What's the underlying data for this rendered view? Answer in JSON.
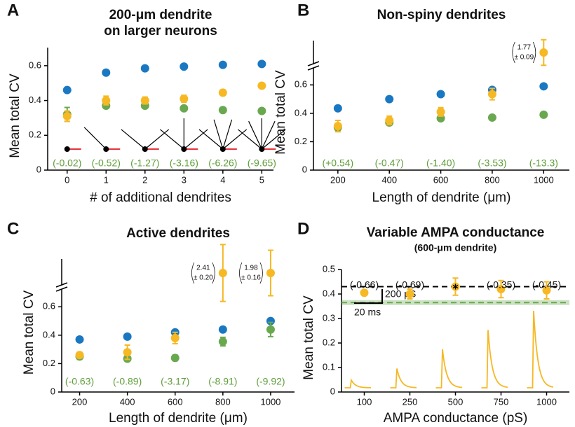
{
  "chart_data": [
    {
      "type": "scatter",
      "label": "A",
      "title": [
        "200-μm dendrite",
        "on larger neurons"
      ],
      "x_label": "# of additional dendrites",
      "y_label": "Mean total CV",
      "x": [
        0,
        1,
        2,
        3,
        4,
        5
      ],
      "xlim": [
        -0.5,
        5.3
      ],
      "xticks": [
        0,
        1,
        2,
        3,
        4,
        5
      ],
      "ylim": [
        0,
        0.7
      ],
      "yticks": [
        0,
        0.2,
        0.4,
        0.6
      ],
      "series": [
        {
          "color": "#1a78c2",
          "values": [
            0.46,
            0.56,
            0.585,
            0.595,
            0.605,
            0.61
          ]
        },
        {
          "color": "#6aa84f",
          "values": [
            0.32,
            0.37,
            0.37,
            0.355,
            0.345,
            0.34
          ],
          "errors": [
            0.04,
            0.015,
            0.01,
            0.01,
            0.01,
            0.01
          ]
        },
        {
          "color": "#f6b823",
          "values": [
            0.31,
            0.4,
            0.4,
            0.41,
            0.445,
            0.485
          ],
          "errors": [
            0.03,
            0.025,
            0.02,
            0.02,
            0.015,
            0.01
          ]
        }
      ],
      "annotations": [
        "(-0.02)",
        "(-0.52)",
        "(-1.27)",
        "(-3.16)",
        "(-6.26)",
        "(-9.65)"
      ],
      "annotation_color": "#5f9e3a"
    },
    {
      "type": "scatter",
      "label": "B",
      "title": [
        "Non-spiny dendrites"
      ],
      "x_label": "Length of dendrite (μm)",
      "y_label": "Mean total CV",
      "x": [
        200,
        400,
        600,
        800,
        1000
      ],
      "xlim": [
        105,
        1100
      ],
      "xticks": [
        200,
        400,
        600,
        800,
        1000
      ],
      "ylim": [
        0,
        0.7
      ],
      "yticks": [
        0,
        0.2,
        0.4,
        0.6
      ],
      "axis_break": true,
      "series": [
        {
          "color": "#1a78c2",
          "values": [
            0.435,
            0.5,
            0.535,
            0.565,
            0.59
          ]
        },
        {
          "color": "#6aa84f",
          "values": [
            0.3,
            0.335,
            0.365,
            0.37,
            0.39
          ],
          "errors": [
            0.02,
            0.02,
            0.01,
            0.01,
            0.01
          ]
        },
        {
          "color": "#f6b823",
          "values": [
            0.31,
            0.35,
            0.41,
            0.535,
            1.77
          ],
          "errors": [
            0.04,
            0.03,
            0.03,
            0.04,
            0.09
          ],
          "error_labels": [
            null,
            null,
            null,
            null,
            "± 0.09"
          ]
        }
      ],
      "annotations": [
        "(+0.54)",
        "(-0.47)",
        "(-1.40)",
        "(-3.53)",
        "(-13.3)"
      ],
      "annotation_color": "#5f9e3a"
    },
    {
      "type": "scatter",
      "label": "C",
      "title": [
        "Active dendrites"
      ],
      "x_label": "Length of dendrite (μm)",
      "y_label": "Mean total CV",
      "x": [
        200,
        400,
        600,
        800,
        1000
      ],
      "xlim": [
        125,
        1100
      ],
      "xticks": [
        200,
        400,
        600,
        800,
        1000
      ],
      "ylim": [
        0,
        0.7
      ],
      "yticks": [
        0,
        0.2,
        0.4,
        0.6
      ],
      "axis_break": true,
      "series": [
        {
          "color": "#1a78c2",
          "values": [
            0.37,
            0.39,
            0.42,
            0.44,
            0.5
          ]
        },
        {
          "color": "#6aa84f",
          "values": [
            0.25,
            0.235,
            0.24,
            0.355,
            0.44
          ],
          "errors": [
            0.02,
            0.02,
            0.02,
            0.03,
            0.05
          ]
        },
        {
          "color": "#f6b823",
          "values": [
            0.26,
            0.28,
            0.38,
            2.41,
            1.98
          ],
          "errors": [
            0.02,
            0.05,
            0.04,
            0.2,
            0.16
          ],
          "error_labels": [
            null,
            null,
            null,
            "± 0.20",
            "± 0.16"
          ]
        }
      ],
      "annotations": [
        "(-0.63)",
        "(-0.89)",
        "(-3.17)",
        "(-8.91)",
        "(-9.92)"
      ],
      "annotation_color": "#5f9e3a"
    },
    {
      "type": "scatter",
      "label": "D",
      "title": [
        "Variable AMPA conductance"
      ],
      "subtitle": "(600-μm dendrite)",
      "x_label": "AMPA conductance (pS)",
      "y_label": "Mean total CV",
      "categories": [
        100,
        250,
        500,
        750,
        1000
      ],
      "ylim": [
        0,
        0.5
      ],
      "yticks": [
        0,
        0.1,
        0.2,
        0.3,
        0.4,
        0.5
      ],
      "series": [
        {
          "color": "#f6b823",
          "values": [
            0.405,
            0.4,
            0.43,
            0.42,
            0.415
          ],
          "errors": [
            0.01,
            0.02,
            0.035,
            0.035,
            0.035
          ],
          "markers": [
            "circle",
            "circle",
            "star",
            "circle",
            "circle"
          ]
        }
      ],
      "reference_lines": [
        {
          "value": 0.43,
          "color": "#000000"
        },
        {
          "value": 0.365,
          "color": "#6aa84f",
          "band": [
            0.355,
            0.375
          ]
        }
      ],
      "annotations": [
        "(-0.66)",
        "(-0.69)",
        null,
        "(-0.35)",
        "(-0.45)"
      ],
      "annotation_color": "#111111",
      "scale_bar": {
        "y_label": "200 pS",
        "x_label": "20 ms"
      }
    }
  ]
}
